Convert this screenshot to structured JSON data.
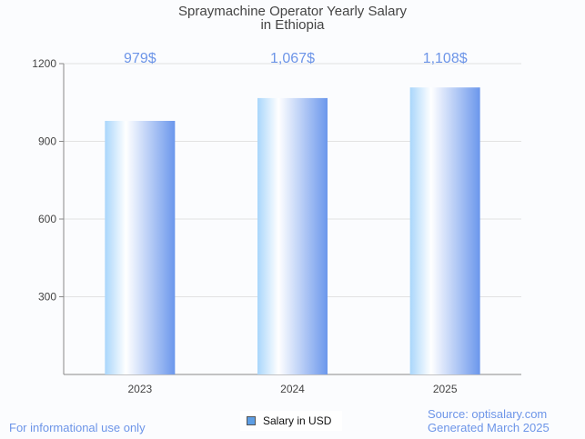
{
  "chart_data": {
    "type": "bar",
    "title_line1": "Spraymachine Operator Yearly Salary",
    "title_line2": "in Ethiopia",
    "categories": [
      "2023",
      "2024",
      "2025"
    ],
    "values": [
      979,
      1067,
      1108
    ],
    "data_labels": [
      "979$",
      "1,067$",
      "1,108$"
    ],
    "ylim": [
      0,
      1200
    ],
    "yticks": [
      300,
      600,
      900,
      1200
    ],
    "grid": true,
    "legend": {
      "label": "Salary in USD",
      "placement": "bottom-center"
    },
    "colors": {
      "bar_light": "#a9d6fb",
      "bar_mid": "#ffffff",
      "bar_dark": "#6b97ec",
      "label": "#6d95e8"
    }
  },
  "footer": {
    "left": "For informational use only",
    "source": "Source: optisalary.com",
    "generated": "Generated March 2025"
  }
}
